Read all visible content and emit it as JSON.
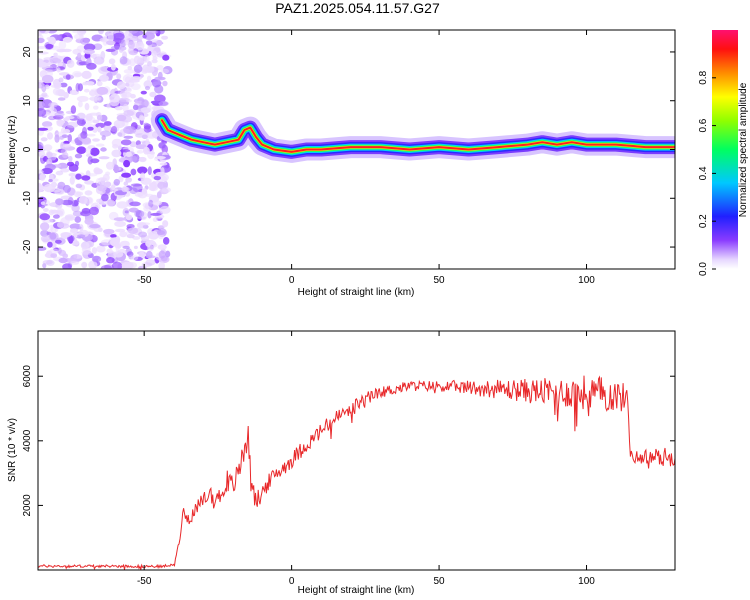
{
  "title": "PAZ1.2025.054.11.57.G27",
  "colors": {
    "snr_line": "#e8282a",
    "frame": "#000000"
  },
  "chart_data": [
    {
      "type": "heatmap",
      "xlabel": "Height of straight line (km)",
      "ylabel": "Frequency (Hz)",
      "xlim": [
        -86,
        130
      ],
      "ylim": [
        -24.5,
        24.5
      ],
      "xticks": [
        -50,
        0,
        50,
        100
      ],
      "yticks": [
        -20,
        -10,
        0,
        10,
        20
      ],
      "colorbar": {
        "label": "Normalized spectral amplitude",
        "range": [
          0,
          1
        ],
        "ticks": [
          "0.0",
          "0.2",
          "0.4",
          "0.6",
          "0.8"
        ]
      },
      "noise_region_x": [
        -86,
        -42
      ],
      "ridge": {
        "x": [
          -44,
          -42,
          -38,
          -34,
          -30,
          -26,
          -22,
          -18,
          -16,
          -14,
          -12,
          -10,
          -6,
          0,
          5,
          10,
          20,
          30,
          40,
          50,
          60,
          70,
          80,
          85,
          90,
          95,
          100,
          110,
          120,
          130
        ],
        "freq": [
          6,
          4,
          3,
          2,
          1.5,
          1,
          1.5,
          2,
          4,
          4.5,
          2.5,
          1,
          0,
          -0.5,
          0,
          0,
          0.5,
          0.5,
          0,
          0.5,
          0,
          0.5,
          1,
          1.5,
          1,
          1.5,
          1,
          1,
          0.5,
          0.5
        ]
      }
    },
    {
      "type": "line",
      "xlabel": "Height of straight line (km)",
      "ylabel": "SNR (10 * v/v)",
      "xlim": [
        -86,
        130
      ],
      "ylim": [
        0,
        7400
      ],
      "xticks": [
        -50,
        0,
        50,
        100
      ],
      "yticks": [
        2000,
        4000,
        6000
      ],
      "series": [
        {
          "x": [
            -86,
            -60,
            -45,
            -40,
            -38,
            -37,
            -35,
            -32,
            -28,
            -26,
            -24,
            -22,
            -20,
            -18,
            -17,
            -16,
            -15,
            -14,
            -13,
            -12,
            -10,
            -8,
            -5,
            0,
            5,
            10,
            15,
            20,
            25,
            30,
            40,
            50,
            60,
            70,
            80,
            90,
            100,
            105,
            110,
            114,
            115,
            120,
            125,
            130
          ],
          "y": [
            120,
            120,
            110,
            150,
            900,
            1800,
            1600,
            1900,
            2400,
            2200,
            2300,
            2800,
            2600,
            3000,
            3400,
            3800,
            4200,
            3500,
            2400,
            2100,
            2400,
            2700,
            3000,
            3400,
            3900,
            4300,
            4700,
            5000,
            5300,
            5500,
            5700,
            5700,
            5650,
            5600,
            5550,
            5500,
            5500,
            5450,
            5400,
            5300,
            3500,
            3500,
            3500,
            3500
          ],
          "noise": [
            40,
            40,
            40,
            40,
            100,
            150,
            200,
            250,
            250,
            250,
            300,
            350,
            350,
            400,
            450,
            500,
            500,
            400,
            300,
            300,
            300,
            250,
            250,
            250,
            250,
            250,
            250,
            220,
            200,
            180,
            160,
            170,
            220,
            300,
            380,
            450,
            550,
            550,
            500,
            450,
            200,
            250,
            300,
            300
          ]
        }
      ]
    }
  ]
}
